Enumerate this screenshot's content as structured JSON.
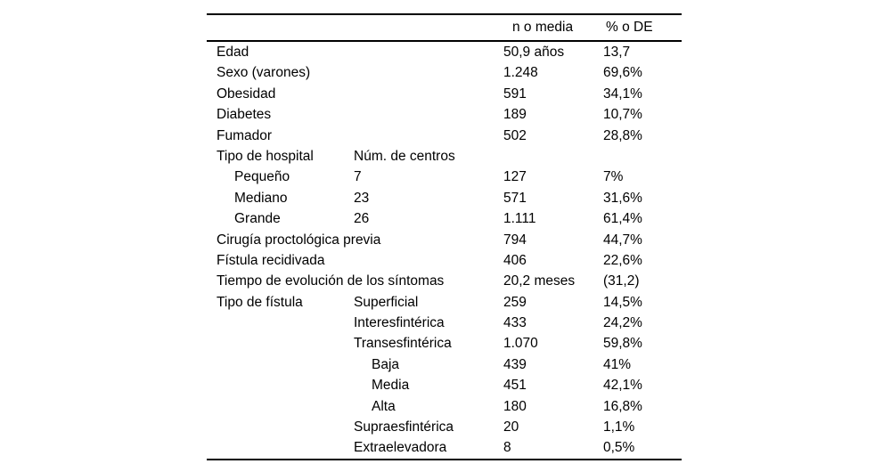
{
  "page": {
    "background": "#ffffff",
    "text_color": "#000000",
    "rule_color": "#000000"
  },
  "table": {
    "headers": {
      "label": "",
      "sub": "",
      "n": "n o media",
      "pct": "% o DE"
    },
    "rows": [
      {
        "label": "Edad",
        "sub": "",
        "n": "50,9 años",
        "pct": "13,7",
        "label_indent": 0,
        "sub_indent": 0
      },
      {
        "label": "Sexo (varones)",
        "sub": "",
        "n": "1.248",
        "pct": "69,6%",
        "label_indent": 0,
        "sub_indent": 0
      },
      {
        "label": "Obesidad",
        "sub": "",
        "n": "591",
        "pct": "34,1%",
        "label_indent": 0,
        "sub_indent": 0
      },
      {
        "label": "Diabetes",
        "sub": "",
        "n": "189",
        "pct": "10,7%",
        "label_indent": 0,
        "sub_indent": 0
      },
      {
        "label": "Fumador",
        "sub": "",
        "n": "502",
        "pct": "28,8%",
        "label_indent": 0,
        "sub_indent": 0
      },
      {
        "label": "Tipo de hospital",
        "sub": "Núm. de centros",
        "n": "",
        "pct": "",
        "label_indent": 0,
        "sub_indent": 0
      },
      {
        "label": "Pequeño",
        "sub": "7",
        "n": "127",
        "pct": "7%",
        "label_indent": 1,
        "sub_indent": 0
      },
      {
        "label": "Mediano",
        "sub": "23",
        "n": "571",
        "pct": "31,6%",
        "label_indent": 1,
        "sub_indent": 0
      },
      {
        "label": "Grande",
        "sub": "26",
        "n": "1.111",
        "pct": "61,4%",
        "label_indent": 1,
        "sub_indent": 0
      },
      {
        "label": "Cirugía proctológica previa",
        "sub": "",
        "n": "794",
        "pct": "44,7%",
        "label_indent": 0,
        "sub_indent": 0
      },
      {
        "label": "Fístula recidivada",
        "sub": "",
        "n": "406",
        "pct": "22,6%",
        "label_indent": 0,
        "sub_indent": 0
      },
      {
        "label": "Tiempo de evolución de los síntomas",
        "sub": "",
        "n": "20,2 meses",
        "pct": "(31,2)",
        "label_indent": 0,
        "sub_indent": 0
      },
      {
        "label": "Tipo de fístula",
        "sub": "Superficial",
        "n": "259",
        "pct": "14,5%",
        "label_indent": 0,
        "sub_indent": 0
      },
      {
        "label": "",
        "sub": "Interesfintérica",
        "n": "433",
        "pct": "24,2%",
        "label_indent": 0,
        "sub_indent": 0
      },
      {
        "label": "",
        "sub": "Transesfintérica",
        "n": "1.070",
        "pct": "59,8%",
        "label_indent": 0,
        "sub_indent": 0
      },
      {
        "label": "",
        "sub": "Baja",
        "n": "439",
        "pct": "41%",
        "label_indent": 0,
        "sub_indent": 1
      },
      {
        "label": "",
        "sub": "Media",
        "n": "451",
        "pct": "42,1%",
        "label_indent": 0,
        "sub_indent": 1
      },
      {
        "label": "",
        "sub": "Alta",
        "n": "180",
        "pct": "16,8%",
        "label_indent": 0,
        "sub_indent": 1
      },
      {
        "label": "",
        "sub": "Supraesfintérica",
        "n": "20",
        "pct": "1,1%",
        "label_indent": 0,
        "sub_indent": 0
      },
      {
        "label": "",
        "sub": "Extraelevadora",
        "n": "8",
        "pct": "0,5%",
        "label_indent": 0,
        "sub_indent": 0
      }
    ]
  }
}
